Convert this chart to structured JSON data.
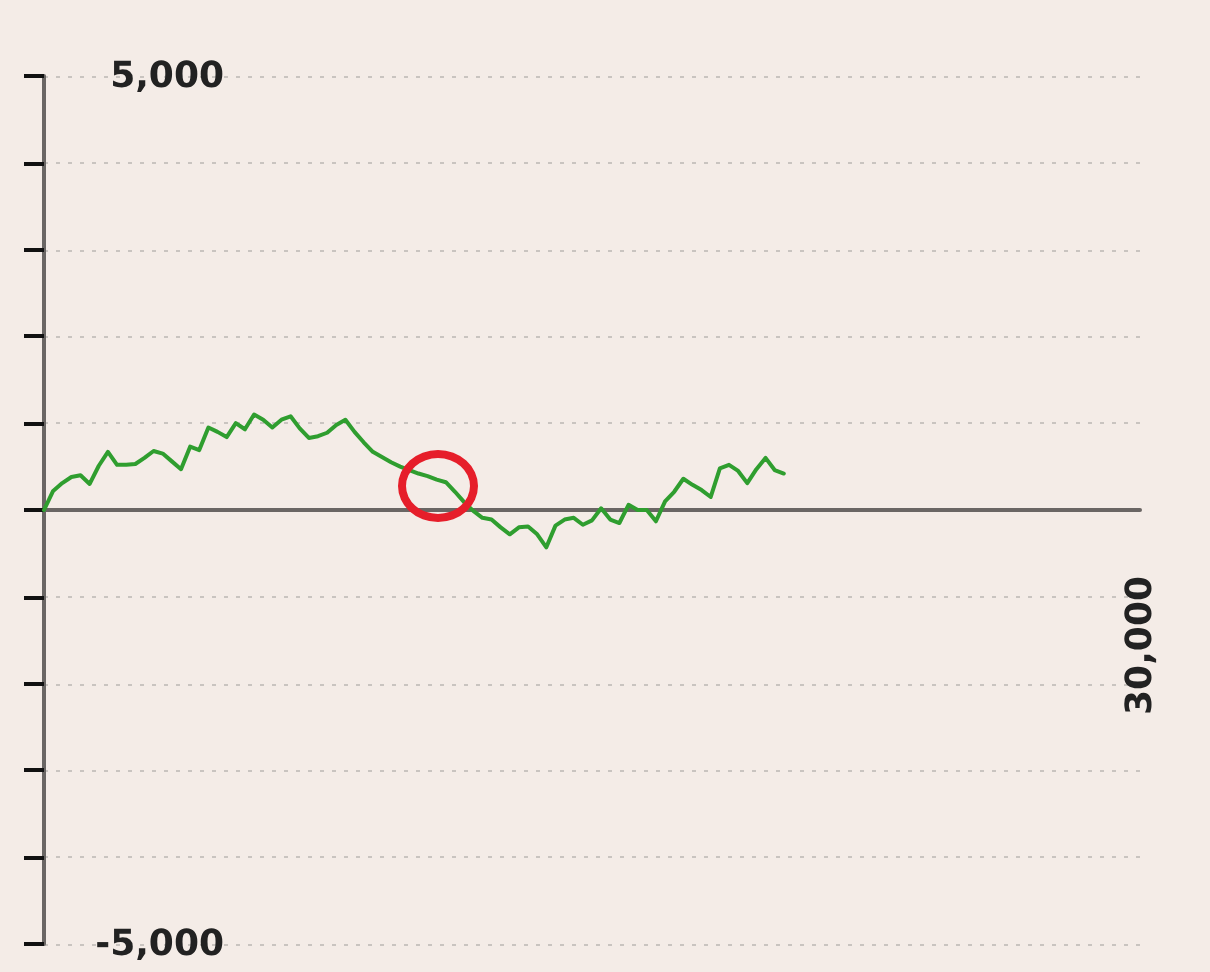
{
  "chart_data": {
    "type": "line",
    "categories": [
      null,
      null,
      null,
      null,
      null,
      null,
      null,
      null,
      null,
      null,
      null,
      null,
      null,
      null,
      null,
      null,
      null,
      null,
      null,
      null,
      null,
      null,
      null,
      null,
      null,
      null,
      null,
      null,
      null,
      null,
      null,
      null,
      null,
      null,
      null,
      null,
      null,
      null,
      null,
      null,
      null,
      null,
      null,
      null,
      null,
      null,
      null,
      null,
      null,
      null,
      null,
      null,
      null,
      null,
      null,
      null,
      null,
      null,
      null,
      null,
      null,
      null,
      null,
      null,
      null,
      null,
      null,
      null,
      null,
      null,
      null,
      null,
      null,
      null,
      null,
      null,
      null,
      null,
      null,
      null,
      null,
      null,
      null,
      null,
      null,
      null,
      null,
      null,
      null,
      null,
      null,
      null,
      null,
      null,
      null,
      null,
      null,
      null,
      null,
      null,
      null,
      null,
      null,
      null,
      null,
      null,
      null,
      null,
      null,
      null,
      null,
      null,
      null,
      null,
      null,
      null,
      null,
      null,
      null,
      null,
      "30,000"
    ],
    "values": [
      0,
      220,
      310,
      380,
      400,
      300,
      510,
      670,
      520,
      520,
      530,
      600,
      680,
      650,
      560,
      470,
      730,
      690,
      950,
      900,
      840,
      1000,
      930,
      1100,
      1040,
      950,
      1040,
      1080,
      940,
      830,
      850,
      890,
      980,
      1040,
      900,
      780,
      670,
      610,
      550,
      500,
      460,
      420,
      390,
      350,
      320,
      210,
      90,
      -10,
      -90,
      -110,
      -200,
      -280,
      -200,
      -190,
      -280,
      -430,
      -180,
      -110,
      -90,
      -170,
      -120,
      20,
      -110,
      -150,
      60,
      0,
      0,
      -130,
      100,
      210,
      360,
      290,
      230,
      150,
      480,
      520,
      450,
      310,
      470,
      600,
      460,
      420,
      null,
      null,
      null,
      null,
      null,
      null,
      null,
      null,
      null,
      null,
      null,
      null,
      null,
      null,
      null,
      null,
      null,
      null,
      null,
      null,
      null,
      null,
      null,
      null,
      null,
      null,
      null,
      null,
      null,
      null,
      null,
      null,
      null,
      null,
      null,
      null,
      null,
      null,
      null
    ],
    "color": "#2f9e2f",
    "ylim": [
      -5000,
      5000
    ],
    "yticks": [
      {
        "value": -5000,
        "label": "-5,000"
      },
      {
        "value": -4000,
        "label": null
      },
      {
        "value": -3000,
        "label": null
      },
      {
        "value": -2000,
        "label": null
      },
      {
        "value": -1000,
        "label": null
      },
      {
        "value": 0,
        "label": null
      },
      {
        "value": 1000,
        "label": null
      },
      {
        "value": 2000,
        "label": null
      },
      {
        "value": 3000,
        "label": null
      },
      {
        "value": 4000,
        "label": null
      },
      {
        "value": 5000,
        "label": "5,000"
      }
    ],
    "grid": "y"
  }
}
